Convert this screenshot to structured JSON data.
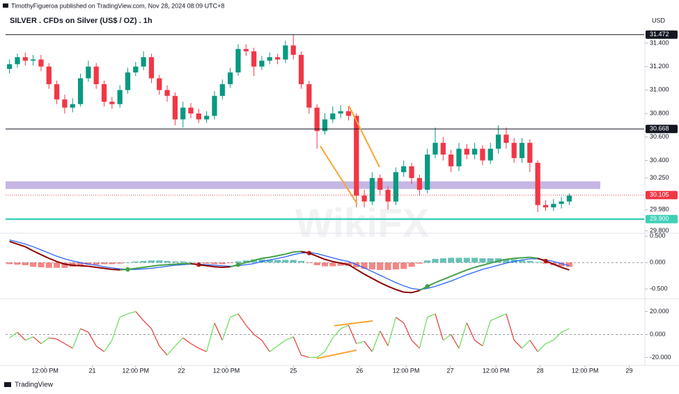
{
  "header": {
    "published": "TimothyFigueroa published on TradingView.com, Nov 28, 2024 08:09 UTC+8",
    "title": "SILVER . CFDs on Silver (US$ / OZ) . 1h",
    "currency": "USD",
    "watermark": "WikiFX",
    "footer": "TradingView"
  },
  "chart_data": [
    {
      "type": "candlestick",
      "up_color": "#089981",
      "down_color": "#f23645",
      "open": [
        31.18,
        31.22,
        31.28,
        31.25,
        31.26,
        31.2,
        31.05,
        30.92,
        30.85,
        30.88,
        31.1,
        31.2,
        31.05,
        30.9,
        30.88,
        31.0,
        31.15,
        31.2,
        31.28,
        31.1,
        31.0,
        30.95,
        30.75,
        30.85,
        30.8,
        30.75,
        30.78,
        30.95,
        31.05,
        31.15,
        31.35,
        31.33,
        31.2,
        31.25,
        31.28,
        31.26,
        31.38,
        31.3,
        31.05,
        30.85,
        30.65,
        30.75,
        30.8,
        30.82,
        30.78,
        30.1,
        30.05,
        30.25,
        30.15,
        30.05,
        30.3,
        30.35,
        30.25,
        30.15,
        30.45,
        30.55,
        30.45,
        30.35,
        30.5,
        30.45,
        30.5,
        30.4,
        30.5,
        30.62,
        30.55,
        30.42,
        30.55,
        30.38,
        30.02,
        30.0,
        30.03,
        30.05
      ],
      "high": [
        31.26,
        31.31,
        31.32,
        31.3,
        31.3,
        31.23,
        31.08,
        30.96,
        30.93,
        31.14,
        31.25,
        31.23,
        31.08,
        30.94,
        31.04,
        31.19,
        31.24,
        31.33,
        31.31,
        31.13,
        31.04,
        30.98,
        30.9,
        30.89,
        30.84,
        30.82,
        30.99,
        31.09,
        31.19,
        31.39,
        31.39,
        31.36,
        31.29,
        31.32,
        31.31,
        31.42,
        31.47,
        31.33,
        31.08,
        30.88,
        30.8,
        30.86,
        30.87,
        30.86,
        30.8,
        30.15,
        30.3,
        30.28,
        30.18,
        30.34,
        30.4,
        30.38,
        30.28,
        30.5,
        30.68,
        30.6,
        30.49,
        30.55,
        30.54,
        30.55,
        30.53,
        30.55,
        30.7,
        30.68,
        30.59,
        30.59,
        30.58,
        30.4,
        30.06,
        30.07,
        30.09,
        30.12
      ],
      "low": [
        31.14,
        31.19,
        31.21,
        31.21,
        31.16,
        31.01,
        30.88,
        30.8,
        30.81,
        30.86,
        31.07,
        31.01,
        30.86,
        30.84,
        30.85,
        30.97,
        31.12,
        31.17,
        31.06,
        30.96,
        30.9,
        30.7,
        30.68,
        30.76,
        30.72,
        30.72,
        30.75,
        30.92,
        31.02,
        31.12,
        31.29,
        31.12,
        31.17,
        31.22,
        31.22,
        31.23,
        31.26,
        31.01,
        30.8,
        30.5,
        30.62,
        30.72,
        30.76,
        30.74,
        30.0,
        30.0,
        30.02,
        30.1,
        29.98,
        30.02,
        30.26,
        30.2,
        30.1,
        30.12,
        30.42,
        30.4,
        30.3,
        30.31,
        30.41,
        30.41,
        30.36,
        30.37,
        30.46,
        30.5,
        30.38,
        30.38,
        30.3,
        29.96,
        29.97,
        29.97,
        29.99,
        30.02
      ],
      "close": [
        31.22,
        31.28,
        31.25,
        31.26,
        31.2,
        31.05,
        30.92,
        30.85,
        30.88,
        31.1,
        31.2,
        31.05,
        30.9,
        30.88,
        31.0,
        31.15,
        31.2,
        31.28,
        31.1,
        31.0,
        30.95,
        30.75,
        30.85,
        30.8,
        30.75,
        30.78,
        30.95,
        31.05,
        31.15,
        31.35,
        31.33,
        31.2,
        31.25,
        31.28,
        31.26,
        31.38,
        31.3,
        31.05,
        30.85,
        30.65,
        30.75,
        30.8,
        30.82,
        30.78,
        30.1,
        30.05,
        30.25,
        30.15,
        30.05,
        30.3,
        30.35,
        30.25,
        30.15,
        30.45,
        30.55,
        30.45,
        30.35,
        30.5,
        30.45,
        30.5,
        30.4,
        30.5,
        30.62,
        30.55,
        30.42,
        30.55,
        30.38,
        30.02,
        30.0,
        30.03,
        30.05,
        30.1
      ],
      "ylim": [
        29.78,
        31.53
      ],
      "yticks": [
        {
          "value": 31.4,
          "label": "31.400"
        },
        {
          "value": 31.2,
          "label": "31.200"
        },
        {
          "value": 31.0,
          "label": "31.000"
        },
        {
          "value": 30.8,
          "label": "30.800"
        },
        {
          "value": 30.6,
          "label": "30.600"
        },
        {
          "value": 30.4,
          "label": "30.400"
        },
        {
          "value": 30.25,
          "label": "30.250"
        },
        {
          "value": 29.98,
          "label": "29.980"
        },
        {
          "value": 29.8,
          "label": "29.800"
        }
      ],
      "price_lines": [
        {
          "value": 31.472,
          "label": "31.472",
          "color": "#131722",
          "style": "solid"
        },
        {
          "value": 30.668,
          "label": "30.668",
          "color": "#131722",
          "style": "solid"
        },
        {
          "value": 30.105,
          "label": "30.105",
          "color": "#f23645",
          "style": "dotted"
        },
        {
          "value": 29.9,
          "label": "29.900",
          "color": "#3fd0b8",
          "style": "thick"
        }
      ],
      "zone": {
        "low": 30.157,
        "high": 30.222,
        "color": "#b39ddb"
      }
    },
    {
      "type": "macd",
      "macd": [
        0.4,
        0.35,
        0.3,
        0.22,
        0.15,
        0.08,
        0.02,
        -0.03,
        -0.05,
        -0.06,
        -0.07,
        -0.09,
        -0.11,
        -0.13,
        -0.14,
        -0.13,
        -0.11,
        -0.09,
        -0.07,
        -0.05,
        -0.04,
        -0.03,
        -0.02,
        -0.02,
        -0.04,
        -0.06,
        -0.08,
        -0.09,
        -0.08,
        -0.04,
        0.0,
        0.04,
        0.08,
        0.1,
        0.13,
        0.16,
        0.2,
        0.21,
        0.18,
        0.12,
        0.06,
        0.02,
        -0.01,
        -0.04,
        -0.13,
        -0.22,
        -0.3,
        -0.38,
        -0.45,
        -0.51,
        -0.56,
        -0.57,
        -0.53,
        -0.45,
        -0.38,
        -0.32,
        -0.26,
        -0.2,
        -0.14,
        -0.09,
        -0.05,
        -0.01,
        0.03,
        0.06,
        0.08,
        0.09,
        0.1,
        0.08,
        0.03,
        -0.03,
        -0.09,
        -0.14
      ],
      "signal": [
        0.43,
        0.39,
        0.35,
        0.3,
        0.24,
        0.18,
        0.12,
        0.07,
        0.03,
        0.0,
        -0.03,
        -0.05,
        -0.08,
        -0.1,
        -0.12,
        -0.13,
        -0.13,
        -0.12,
        -0.11,
        -0.09,
        -0.07,
        -0.05,
        -0.04,
        -0.03,
        -0.03,
        -0.04,
        -0.05,
        -0.06,
        -0.07,
        -0.06,
        -0.04,
        -0.02,
        0.02,
        0.05,
        0.08,
        0.11,
        0.15,
        0.18,
        0.19,
        0.17,
        0.13,
        0.09,
        0.05,
        0.02,
        -0.04,
        -0.1,
        -0.17,
        -0.24,
        -0.31,
        -0.38,
        -0.44,
        -0.49,
        -0.51,
        -0.49,
        -0.45,
        -0.4,
        -0.35,
        -0.29,
        -0.23,
        -0.18,
        -0.13,
        -0.09,
        -0.05,
        -0.01,
        0.02,
        0.05,
        0.07,
        0.07,
        0.05,
        0.02,
        -0.02,
        -0.06
      ],
      "histogram": [
        -0.03,
        -0.04,
        -0.05,
        -0.08,
        -0.09,
        -0.1,
        -0.1,
        -0.1,
        -0.08,
        -0.06,
        -0.04,
        -0.04,
        -0.03,
        -0.03,
        -0.02,
        0.0,
        0.02,
        0.03,
        0.04,
        0.04,
        0.03,
        0.02,
        0.02,
        0.01,
        -0.01,
        -0.02,
        -0.03,
        -0.03,
        -0.01,
        0.02,
        0.04,
        0.06,
        0.06,
        0.05,
        0.05,
        0.05,
        0.05,
        0.03,
        -0.01,
        -0.05,
        -0.07,
        -0.07,
        -0.06,
        -0.06,
        -0.09,
        -0.12,
        -0.13,
        -0.14,
        -0.14,
        -0.13,
        -0.12,
        -0.08,
        -0.02,
        0.04,
        0.07,
        0.08,
        0.09,
        0.09,
        0.09,
        0.09,
        0.08,
        0.08,
        0.08,
        0.07,
        0.06,
        0.04,
        0.03,
        0.01,
        -0.02,
        -0.05,
        -0.07,
        -0.08
      ],
      "macd_up_color": "#43a047",
      "macd_down_color": "#8b0000",
      "signal_color": "#2962ff",
      "hist_up_color": "#26a69a",
      "hist_down_color": "#ef5350",
      "ylim": [
        -0.67,
        0.53
      ],
      "yticks": [
        {
          "value": 0.5,
          "label": "0.500"
        },
        {
          "value": 0.0,
          "label": "0.000"
        },
        {
          "value": -0.5,
          "label": "-0.500"
        }
      ]
    },
    {
      "type": "line",
      "values": [
        -3,
        2,
        -5,
        -2,
        -8,
        -3,
        -4,
        -8,
        -12,
        5,
        2,
        -10,
        -15,
        -5,
        15,
        18,
        20,
        12,
        5,
        -10,
        -18,
        -10,
        -3,
        -8,
        -12,
        -15,
        10,
        -5,
        15,
        18,
        8,
        0,
        -5,
        -15,
        -10,
        -5,
        -2,
        -18,
        -20,
        -20,
        -15,
        -3,
        5,
        8,
        -8,
        -6,
        -15,
        3,
        -10,
        15,
        10,
        -5,
        -12,
        15,
        18,
        -5,
        0,
        -12,
        10,
        -5,
        -10,
        12,
        15,
        18,
        -5,
        -12,
        -5,
        -15,
        -8,
        -5,
        2,
        5
      ],
      "up_color": "#66dd55",
      "down_color": "#e53935",
      "ylim": [
        -27,
        30
      ],
      "yticks": [
        {
          "value": 20,
          "label": "20.000"
        },
        {
          "value": 0,
          "label": "0.000"
        },
        {
          "value": -20,
          "label": "-20.000"
        }
      ],
      "xlim": [
        0,
        81
      ],
      "xticks": [
        {
          "value": 5.0,
          "label": "12:00 PM"
        },
        {
          "value": 11.0,
          "label": "21"
        },
        {
          "value": 16.5,
          "label": "12:00 PM"
        },
        {
          "value": 22.3,
          "label": "22"
        },
        {
          "value": 28.0,
          "label": "12:00 PM"
        },
        {
          "value": 36.5,
          "label": "25"
        },
        {
          "value": 44.9,
          "label": "26"
        },
        {
          "value": 50.8,
          "label": "12:00 PM"
        },
        {
          "value": 56.4,
          "label": "27"
        },
        {
          "value": 62.2,
          "label": "12:00 PM"
        },
        {
          "value": 67.8,
          "label": "28"
        },
        {
          "value": 73.5,
          "label": "12:00 PM"
        },
        {
          "value": 79.1,
          "label": "29"
        }
      ]
    }
  ]
}
